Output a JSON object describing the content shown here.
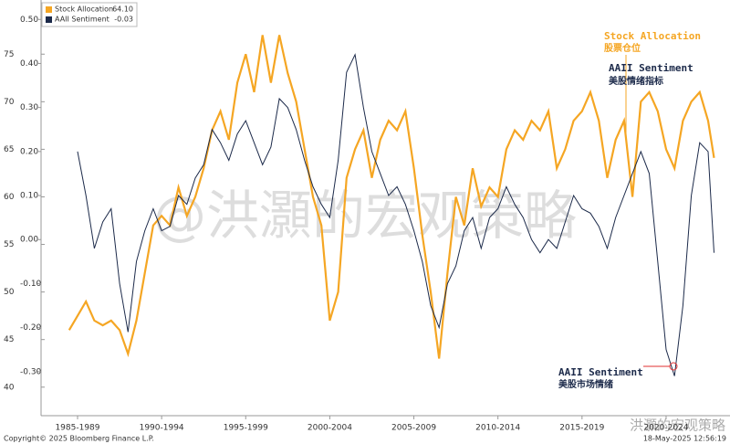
{
  "chart_data": {
    "type": "line",
    "x": [
      1987.0,
      1987.5,
      1988.0,
      1988.5,
      1989.0,
      1989.5,
      1990.0,
      1990.5,
      1991.0,
      1991.5,
      1992.0,
      1992.5,
      1993.0,
      1993.5,
      1994.0,
      1994.5,
      1995.0,
      1995.5,
      1996.0,
      1996.5,
      1997.0,
      1997.5,
      1998.0,
      1998.5,
      1999.0,
      1999.5,
      2000.0,
      2000.5,
      2001.0,
      2001.5,
      2002.0,
      2002.5,
      2003.0,
      2003.5,
      2004.0,
      2004.5,
      2005.0,
      2005.5,
      2006.0,
      2006.5,
      2007.0,
      2007.5,
      2008.0,
      2008.5,
      2009.0,
      2009.5,
      2010.0,
      2010.5,
      2011.0,
      2011.5,
      2012.0,
      2012.5,
      2013.0,
      2013.5,
      2014.0,
      2014.5,
      2015.0,
      2015.5,
      2016.0,
      2016.5,
      2017.0,
      2017.5,
      2018.0,
      2018.5,
      2019.0,
      2019.5,
      2020.0,
      2020.5,
      2021.0,
      2021.5,
      2022.0,
      2022.5,
      2023.0,
      2023.5,
      2024.0,
      2024.5,
      2025.0,
      2025.35
    ],
    "series": [
      {
        "name": "Stock Allocation",
        "last_value_label": "64.10",
        "color": "#f5a623",
        "axis": "y",
        "values": [
          46,
          47.5,
          49,
          47,
          46.5,
          47,
          46,
          43.5,
          47,
          52,
          57,
          58,
          57,
          61,
          58,
          60,
          63,
          67,
          69,
          66,
          72,
          75,
          71,
          77,
          72,
          77,
          73,
          70,
          65,
          60,
          57,
          47,
          50,
          62,
          65,
          67,
          62,
          66,
          68,
          67,
          69,
          63,
          56,
          50,
          43,
          52,
          60,
          57,
          63,
          59,
          61,
          60,
          65,
          67,
          66,
          68,
          67,
          69,
          63,
          65,
          68,
          69,
          71,
          68,
          62,
          66,
          68,
          60,
          70,
          71,
          69,
          65,
          63,
          68,
          70,
          71,
          68,
          64.1
        ]
      },
      {
        "name": "AAII Sentiment",
        "last_value_label": "-0.03",
        "color": "#1c2a4a",
        "axis": "y2",
        "values": [
          null,
          0.2,
          0.1,
          -0.02,
          0.04,
          0.07,
          -0.1,
          -0.21,
          -0.05,
          0.02,
          0.07,
          0.02,
          0.03,
          0.1,
          0.08,
          0.14,
          0.17,
          0.25,
          0.22,
          0.18,
          0.24,
          0.27,
          0.22,
          0.17,
          0.21,
          0.32,
          0.3,
          0.25,
          0.18,
          0.12,
          0.08,
          0.05,
          0.18,
          0.38,
          0.42,
          0.3,
          0.2,
          0.15,
          0.1,
          0.12,
          0.08,
          0.02,
          -0.05,
          -0.15,
          -0.2,
          -0.1,
          -0.06,
          0.02,
          0.05,
          -0.02,
          0.05,
          0.07,
          0.12,
          0.08,
          0.05,
          0,
          -0.03,
          0,
          -0.02,
          0.04,
          0.1,
          0.07,
          0.06,
          0.03,
          -0.02,
          0.05,
          0.1,
          0.15,
          0.2,
          0.15,
          -0.05,
          -0.25,
          -0.31,
          -0.15,
          0.1,
          0.22,
          0.2,
          -0.03
        ]
      }
    ],
    "xlim": [
      1985.33,
      2026.3
    ],
    "xticks": [
      {
        "value": 1987.5,
        "label": "1985-1989"
      },
      {
        "value": 1992.5,
        "label": "1990-1994"
      },
      {
        "value": 1997.5,
        "label": "1995-1999"
      },
      {
        "value": 2002.5,
        "label": "2000-2004"
      },
      {
        "value": 2007.5,
        "label": "2005-2009"
      },
      {
        "value": 2012.5,
        "label": "2010-2014"
      },
      {
        "value": 2017.5,
        "label": "2015-2019"
      },
      {
        "value": 2022.5,
        "label": "2020-2024"
      }
    ],
    "ylim": [
      37,
      80.5
    ],
    "yticks": [
      40,
      45,
      50,
      55,
      60,
      65,
      70,
      75
    ],
    "y2lim": [
      -0.4,
      0.54
    ],
    "y2ticks": [
      {
        "value": -0.3,
        "label": "-0.30"
      },
      {
        "value": -0.2,
        "label": "-0.20"
      },
      {
        "value": -0.1,
        "label": "-0.10"
      },
      {
        "value": 0,
        "label": "0.00"
      },
      {
        "value": 0.1,
        "label": "0.10"
      },
      {
        "value": 0.2,
        "label": "0.20"
      },
      {
        "value": 0.3,
        "label": "0.30"
      },
      {
        "value": 0.4,
        "label": "0.40"
      },
      {
        "value": 0.5,
        "label": "0.50"
      }
    ],
    "annotations": [
      "Stock Allocation",
      "股票仓位",
      "AAII Sentiment",
      "美股情绪指标",
      "AAII Sentiment",
      "美股市场情绪"
    ],
    "watermark": "@洪灝的宏观策略",
    "watermark_small": "洪灝的宏观策略",
    "footer_left": "Copyright© 2025 Bloomberg Finance L.P.",
    "footer_right": "18-May-2025 12:56:19"
  }
}
